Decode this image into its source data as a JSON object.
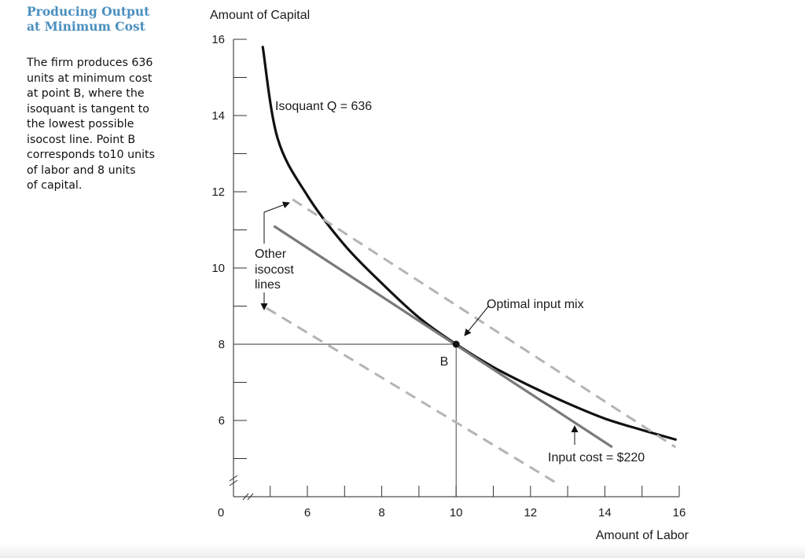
{
  "sidebar": {
    "title_lines": [
      "Producing Output",
      "at Minimum Cost"
    ],
    "body_lines": [
      "The firm produces 636",
      "units at minimum cost",
      "at point B, where the",
      "isoquant is tangent to",
      "the lowest possible",
      "isocost line. Point B",
      "corresponds to10 units",
      "of labor and 8 units",
      "of capital."
    ]
  },
  "colors": {
    "isoquant": "#111111",
    "isocost_main": "#7a7a7a",
    "isocost_other": "#b4b4b4",
    "title_accent": "#4a8fbf"
  },
  "chart_data": {
    "type": "line",
    "xlabel": "Amount of Labor",
    "ylabel": "Amount of Capital",
    "xlim": [
      4,
      16
    ],
    "ylim": [
      4,
      16
    ],
    "axis_break": true,
    "x_ticks": [
      6,
      8,
      10,
      12,
      14,
      16
    ],
    "y_ticks": [
      6,
      8,
      10,
      12,
      14,
      16
    ],
    "origin_label": "0",
    "grid": false,
    "series": [
      {
        "name": "Isoquant Q = 636",
        "style": "solid-thick",
        "points": [
          [
            4.8,
            15.8
          ],
          [
            5.2,
            13.4
          ],
          [
            6.0,
            11.9
          ],
          [
            7.0,
            10.6
          ],
          [
            8.0,
            9.6
          ],
          [
            9.0,
            8.7
          ],
          [
            10.0,
            8.0
          ],
          [
            11.0,
            7.4
          ],
          [
            12.0,
            6.9
          ],
          [
            13.0,
            6.45
          ],
          [
            14.0,
            6.05
          ],
          [
            15.0,
            5.75
          ],
          [
            15.9,
            5.5
          ]
        ]
      },
      {
        "name": "Input cost = $220",
        "style": "solid",
        "points": [
          [
            5.1,
            11.1
          ],
          [
            14.2,
            5.3
          ]
        ]
      },
      {
        "name": "Other isocost lines",
        "style": "dashed",
        "points": [
          [
            5.6,
            11.8
          ],
          [
            15.9,
            5.3
          ]
        ]
      },
      {
        "name": "Other isocost lines",
        "style": "dashed",
        "points": [
          [
            4.9,
            8.95
          ],
          [
            12.8,
            4.3
          ]
        ]
      }
    ],
    "point": {
      "label": "B",
      "x": 10,
      "y": 8
    },
    "annotations": {
      "isoquant": "Isoquant Q = 636",
      "other_isocost": [
        "Other",
        "isocost",
        "lines"
      ],
      "optimal": "Optimal input mix",
      "input_cost": "Input cost = $220"
    }
  }
}
